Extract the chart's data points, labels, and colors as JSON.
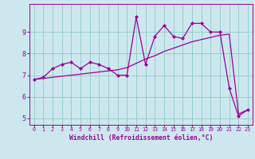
{
  "xlabel": "Windchill (Refroidissement éolien,°C)",
  "bg_color": "#cce8ee",
  "line_color": "#990099",
  "grid_color": "#99cccc",
  "hours": [
    0,
    1,
    2,
    3,
    4,
    5,
    6,
    7,
    8,
    9,
    10,
    11,
    12,
    13,
    14,
    15,
    16,
    17,
    18,
    19,
    20,
    21,
    22,
    23
  ],
  "values": [
    6.8,
    6.9,
    7.3,
    7.5,
    7.6,
    7.3,
    7.6,
    7.5,
    7.3,
    7.0,
    7.0,
    9.7,
    7.5,
    8.8,
    9.3,
    8.8,
    8.7,
    9.4,
    9.4,
    9.0,
    9.0,
    6.4,
    5.1,
    5.4
  ],
  "trend": [
    6.8,
    6.85,
    6.9,
    6.95,
    7.0,
    7.05,
    7.1,
    7.15,
    7.2,
    7.25,
    7.35,
    7.55,
    7.75,
    7.9,
    8.1,
    8.25,
    8.4,
    8.55,
    8.65,
    8.75,
    8.85,
    8.9,
    5.2,
    5.4
  ],
  "xlim": [
    -0.5,
    23.5
  ],
  "ylim": [
    4.7,
    10.3
  ],
  "yticks": [
    5,
    6,
    7,
    8,
    9
  ],
  "xticks": [
    0,
    1,
    2,
    3,
    4,
    5,
    6,
    7,
    8,
    9,
    10,
    11,
    12,
    13,
    14,
    15,
    16,
    17,
    18,
    19,
    20,
    21,
    22,
    23
  ]
}
